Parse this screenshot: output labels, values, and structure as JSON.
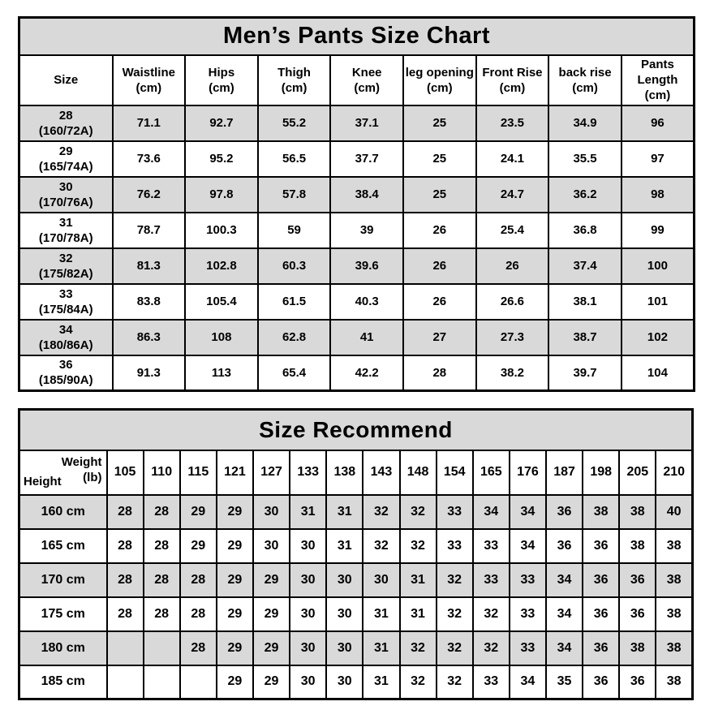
{
  "page": {
    "background": "#ffffff",
    "accent_gray": "#d9d9d9"
  },
  "size_chart": {
    "title": "Men’s Pants Size Chart",
    "columns": [
      {
        "label": "Size",
        "unit": ""
      },
      {
        "label": "Waistline",
        "unit": "(cm)"
      },
      {
        "label": "Hips",
        "unit": "(cm)"
      },
      {
        "label": "Thigh",
        "unit": "(cm)"
      },
      {
        "label": "Knee",
        "unit": "(cm)"
      },
      {
        "label": "leg opening",
        "unit": "(cm)"
      },
      {
        "label": "Front Rise",
        "unit": "(cm)"
      },
      {
        "label": "back rise",
        "unit": "(cm)"
      },
      {
        "label": "Pants Length",
        "unit": "(cm)"
      }
    ],
    "rows": [
      {
        "size": "28",
        "fit": "(160/72A)",
        "values": [
          "71.1",
          "92.7",
          "55.2",
          "37.1",
          "25",
          "23.5",
          "34.9",
          "96"
        ]
      },
      {
        "size": "29",
        "fit": "(165/74A)",
        "values": [
          "73.6",
          "95.2",
          "56.5",
          "37.7",
          "25",
          "24.1",
          "35.5",
          "97"
        ]
      },
      {
        "size": "30",
        "fit": "(170/76A)",
        "values": [
          "76.2",
          "97.8",
          "57.8",
          "38.4",
          "25",
          "24.7",
          "36.2",
          "98"
        ]
      },
      {
        "size": "31",
        "fit": "(170/78A)",
        "values": [
          "78.7",
          "100.3",
          "59",
          "39",
          "26",
          "25.4",
          "36.8",
          "99"
        ]
      },
      {
        "size": "32",
        "fit": "(175/82A)",
        "values": [
          "81.3",
          "102.8",
          "60.3",
          "39.6",
          "26",
          "26",
          "37.4",
          "100"
        ]
      },
      {
        "size": "33",
        "fit": "(175/84A)",
        "values": [
          "83.8",
          "105.4",
          "61.5",
          "40.3",
          "26",
          "26.6",
          "38.1",
          "101"
        ]
      },
      {
        "size": "34",
        "fit": "(180/86A)",
        "values": [
          "86.3",
          "108",
          "62.8",
          "41",
          "27",
          "27.3",
          "38.7",
          "102"
        ]
      },
      {
        "size": "36",
        "fit": "(185/90A)",
        "values": [
          "91.3",
          "113",
          "65.4",
          "42.2",
          "28",
          "38.2",
          "39.7",
          "104"
        ]
      }
    ]
  },
  "size_recommend": {
    "title": "Size Recommend",
    "corner": {
      "top_label": "Weight",
      "top_unit": "(lb)",
      "bottom_label": "Height"
    },
    "weights": [
      "105",
      "110",
      "115",
      "121",
      "127",
      "133",
      "138",
      "143",
      "148",
      "154",
      "165",
      "176",
      "187",
      "198",
      "205",
      "210"
    ],
    "rows": [
      {
        "height": "160 cm",
        "values": [
          "28",
          "28",
          "29",
          "29",
          "30",
          "31",
          "31",
          "32",
          "32",
          "33",
          "34",
          "34",
          "36",
          "38",
          "38",
          "40"
        ]
      },
      {
        "height": "165 cm",
        "values": [
          "28",
          "28",
          "29",
          "29",
          "30",
          "30",
          "31",
          "32",
          "32",
          "33",
          "33",
          "34",
          "36",
          "36",
          "38",
          "38"
        ]
      },
      {
        "height": "170 cm",
        "values": [
          "28",
          "28",
          "28",
          "29",
          "29",
          "30",
          "30",
          "30",
          "31",
          "32",
          "33",
          "33",
          "34",
          "36",
          "36",
          "38"
        ]
      },
      {
        "height": "175 cm",
        "values": [
          "28",
          "28",
          "28",
          "29",
          "29",
          "30",
          "30",
          "31",
          "31",
          "32",
          "32",
          "33",
          "34",
          "36",
          "36",
          "38"
        ]
      },
      {
        "height": "180 cm",
        "values": [
          "",
          "",
          "28",
          "29",
          "29",
          "30",
          "30",
          "31",
          "32",
          "32",
          "32",
          "33",
          "34",
          "36",
          "38",
          "38"
        ]
      },
      {
        "height": "185 cm",
        "values": [
          "",
          "",
          "",
          "29",
          "29",
          "30",
          "30",
          "31",
          "32",
          "32",
          "33",
          "34",
          "35",
          "36",
          "36",
          "38"
        ]
      }
    ]
  }
}
